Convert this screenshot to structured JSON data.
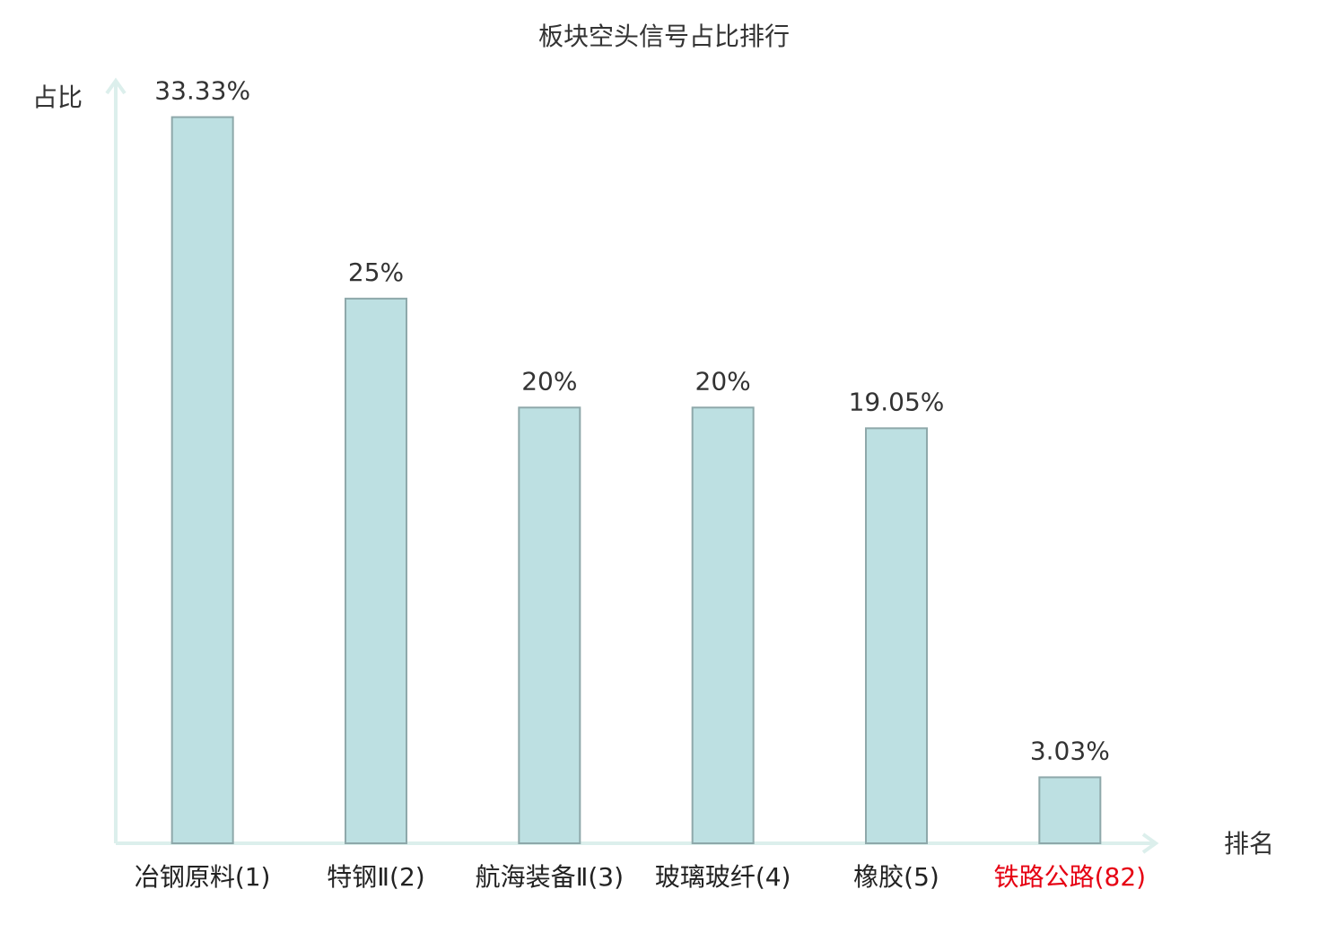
{
  "chart_data": {
    "type": "bar",
    "title": "板块空头信号占比排行",
    "y_label": "占比",
    "x_label": "排名",
    "categories": [
      "冶钢原料(1)",
      "特钢Ⅱ(2)",
      "航海装备Ⅱ(3)",
      "玻璃玻纤(4)",
      "橡胶(5)",
      "铁路公路(82)"
    ],
    "values": [
      33.33,
      25,
      20,
      20,
      19.05,
      3.03
    ],
    "value_labels": [
      "33.33%",
      "25%",
      "20%",
      "20%",
      "19.05%",
      "3.03%"
    ],
    "color": "#bde0e2",
    "edge_color": "#8ea8aa",
    "label_colors": [
      "#222222",
      "#222222",
      "#222222",
      "#222222",
      "#222222",
      "#e60012"
    ],
    "ylim": [
      0,
      35
    ]
  }
}
